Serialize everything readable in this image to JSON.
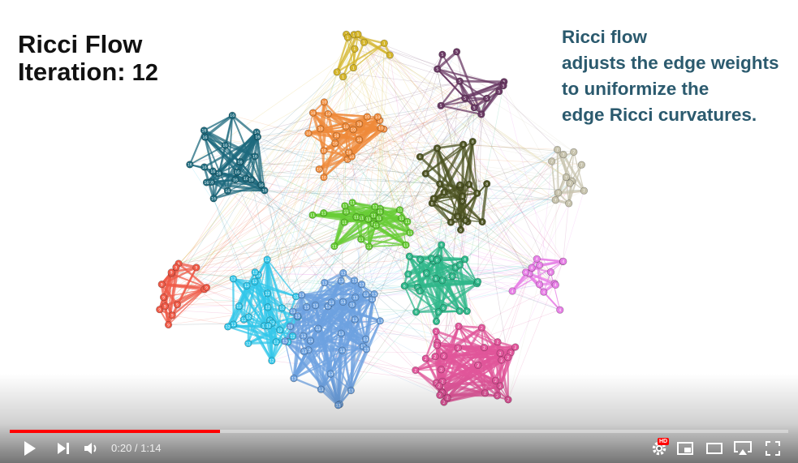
{
  "video": {
    "title_line1": "Ricci Flow",
    "title_line2": "Iteration:",
    "iteration": "12",
    "caption_lines": [
      "Ricci flow",
      "adjusts the edge weights",
      "to uniformize the",
      "edge Ricci curvatures."
    ]
  },
  "player": {
    "current_time": "0:20",
    "duration": "1:14",
    "time_display": "0:20 / 1:14",
    "progress": 0.27,
    "hd_badge": "HD",
    "accent_color": "#ff0000"
  },
  "icons": [
    "play-icon",
    "next-icon",
    "volume-icon",
    "settings-icon",
    "miniplayer-icon",
    "theater-mode-icon",
    "airplay-icon",
    "fullscreen-icon"
  ],
  "communities": [
    {
      "label": "1",
      "color": "#d4b52b"
    },
    {
      "label": "2",
      "color": "#e0559a"
    },
    {
      "label": "4",
      "color": "#e77fe6"
    },
    {
      "label": "5",
      "color": "#6a3a64"
    },
    {
      "label": "6",
      "color": "#2fb78a"
    },
    {
      "label": "7",
      "color": "#c7c3ad"
    },
    {
      "label": "8",
      "color": "#4e5423"
    },
    {
      "label": "9",
      "color": "#ef5a47"
    },
    {
      "label": "10",
      "color": "#ef8a3a"
    },
    {
      "label": "11",
      "color": "#67cc34"
    },
    {
      "label": "12",
      "color": "#33c7ea"
    },
    {
      "label": "13",
      "color": "#6da2e0"
    },
    {
      "label": "16",
      "color": "#1e6a7d"
    }
  ]
}
